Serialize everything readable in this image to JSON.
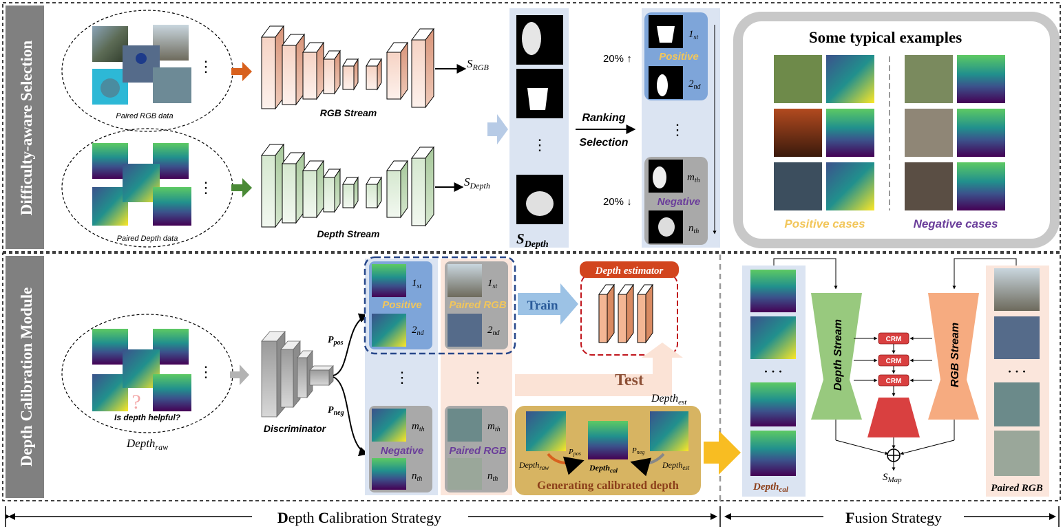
{
  "sections": {
    "top_title": "Difficulty-aware Selection",
    "bottom_title": "Depth Calibration Module"
  },
  "top": {
    "paired_rgb_label": "Paired RGB data",
    "paired_depth_label": "Paired Depth data",
    "ellipsis": "⋮",
    "rgb_stream_label": "RGB Stream",
    "depth_stream_label": "Depth Stream",
    "s_rgb_sym": "S",
    "s_rgb_sub": "RGB",
    "s_depth_sym": "S",
    "s_depth_sub": "Depth",
    "s_depth_col_sym": "S",
    "s_depth_col_sub": "Depth",
    "col_ellipsis": "⋮",
    "ranking_label": "Ranking",
    "selection_label": "Selection",
    "pct_top": "20% ↑",
    "pct_bottom": "20% ↓",
    "rank_1": "1",
    "rank_1_sub": "st",
    "rank_2": "2",
    "rank_2_sub": "nd",
    "rank_m": "m",
    "rank_m_sub": "th",
    "rank_n": "n",
    "rank_n_sub": "th",
    "positive_label": "Positive",
    "negative_label": "Negative",
    "examples_title": "Some typical examples",
    "positive_cases": "Positive cases",
    "negative_cases": "Negative cases"
  },
  "bottom": {
    "question": "Is depth helpful?",
    "depth_raw_sym": "Depth",
    "depth_raw_sub": "raw",
    "discriminator_label": "Discriminator",
    "p_pos_sym": "P",
    "p_pos_sub": "pos",
    "p_neg_sym": "P",
    "p_neg_sub": "neg",
    "positive_label": "Positive",
    "negative_label": "Negative",
    "paired_rgb_top": "Paired RGB",
    "paired_rgb_bottom": "Paired RGB",
    "rank_1": "1",
    "rank_1_sub": "st",
    "rank_2": "2",
    "rank_2_sub": "nd",
    "rank_m": "m",
    "rank_m_sub": "th",
    "rank_n": "n",
    "rank_n_sub": "th",
    "train_label": "Train",
    "depth_estimator_label": "Depth estimator",
    "test_label": "Test",
    "depth_est_sym": "Depth",
    "depth_est_sub": "est",
    "gen_raw_sym": "Depth",
    "gen_raw_sub": "raw",
    "gen_cal_sym": "Depth",
    "gen_cal_sub": "cal",
    "gen_est_sym": "Depth",
    "gen_est_sub": "est",
    "gen_p_pos_sym": "P",
    "gen_p_pos_sub": "pos",
    "gen_p_neg_sym": "P",
    "gen_p_neg_sub": "neg",
    "generating_label": "Generating calibrated depth"
  },
  "fusion": {
    "depth_stream_label": "Depth Stream",
    "rgb_stream_label": "RGB Stream",
    "crm_1": "CRM",
    "crm_2": "CRM",
    "crm_3": "CRM",
    "dots_left": "· · ·",
    "dots_right": "· · ·",
    "depth_cal_sym": "Depth",
    "depth_cal_sub": "cal",
    "paired_rgb_label": "Paired RGB",
    "s_map_sym": "S",
    "s_map_sub": "Map"
  },
  "footer": {
    "strategy_left_first": "D",
    "strategy_left_rest1": "epth ",
    "strategy_left_second": "C",
    "strategy_left_rest2": "alibration Strategy",
    "strategy_right_first": "F",
    "strategy_right_rest": "usion Strategy"
  },
  "colors": {
    "rgb_stream": "#e6a58a",
    "depth_stream": "#8fbf82",
    "positive_text": "#f2c65a",
    "negative_text": "#6a3d9a",
    "light_blue_bg": "#dbe4f2",
    "light_peach_bg": "#fbe6dc",
    "gold_bg": "#d7b462",
    "crm_red": "#d94040",
    "section_bar": "#7f7f7f"
  }
}
